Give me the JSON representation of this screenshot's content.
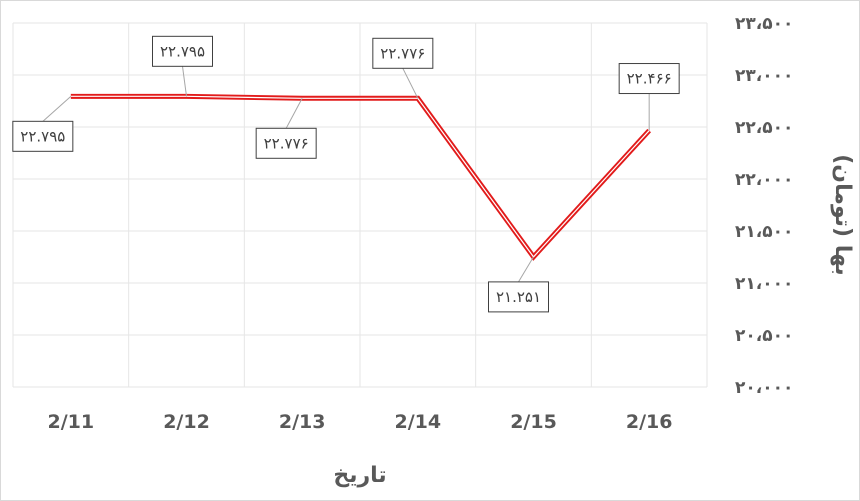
{
  "chart_data": {
    "type": "line",
    "xlabel": "تاریخ",
    "ylabel": "بها (تومان)",
    "categories": [
      "2/11",
      "2/12",
      "2/13",
      "2/14",
      "2/15",
      "2/16"
    ],
    "series": [
      {
        "values": [
          22795,
          22795,
          22776,
          22776,
          21251,
          22466
        ],
        "data_labels": [
          "۲۲.۷۹۵",
          "۲۲.۷۹۵",
          "۲۲.۷۷۶",
          "۲۲.۷۷۶",
          "۲۱.۲۵۱",
          "۲۲.۴۶۶"
        ],
        "color": "#e21b1b"
      }
    ],
    "yticks": [
      20000,
      20500,
      21000,
      21500,
      22000,
      22500,
      23000,
      23500
    ],
    "ytick_labels": [
      "۲۰،۰۰۰",
      "۲۰،۵۰۰",
      "۲۱،۰۰۰",
      "۲۱،۵۰۰",
      "۲۲،۰۰۰",
      "۲۲،۵۰۰",
      "۲۳،۰۰۰",
      "۲۳،۵۰۰"
    ],
    "ylim": [
      20000,
      23500
    ],
    "grid": true,
    "yaxis_position": "right",
    "legend": "none"
  }
}
